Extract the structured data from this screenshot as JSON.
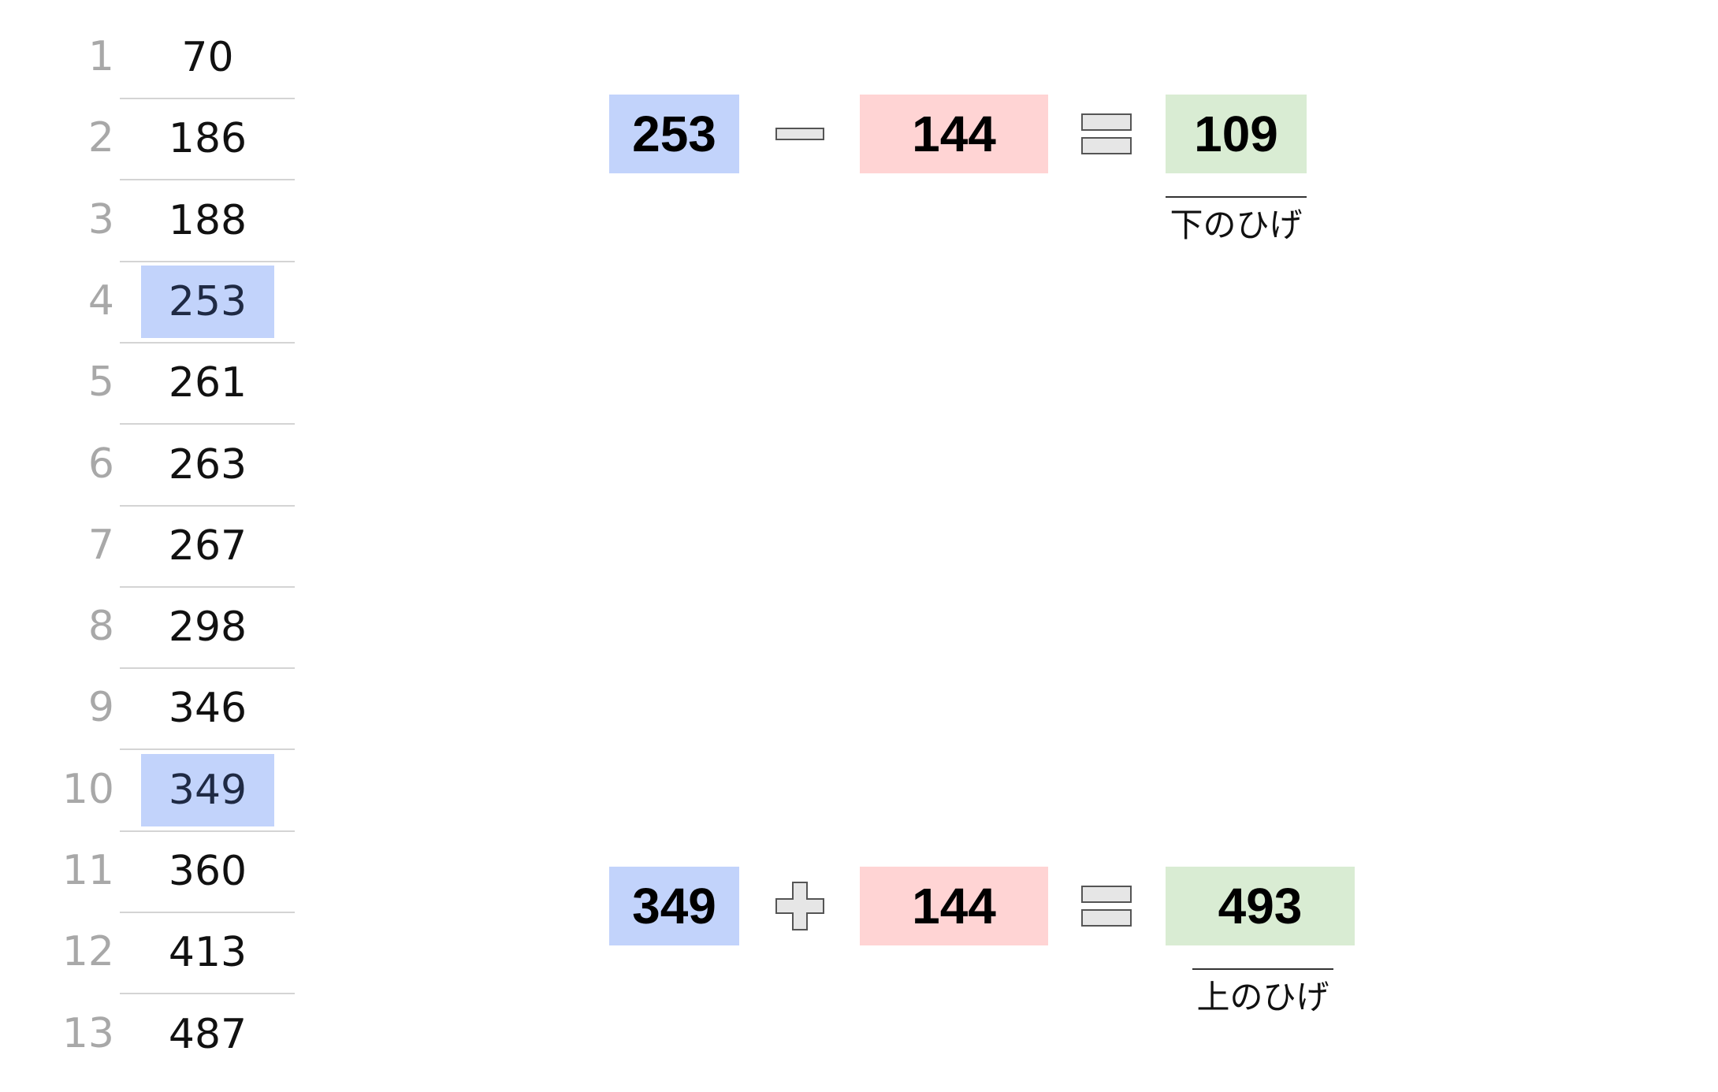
{
  "data_list": {
    "rows": [
      {
        "index": "1",
        "value": "70",
        "highlight": false
      },
      {
        "index": "2",
        "value": "186",
        "highlight": false
      },
      {
        "index": "3",
        "value": "188",
        "highlight": false
      },
      {
        "index": "4",
        "value": "253",
        "highlight": true
      },
      {
        "index": "5",
        "value": "261",
        "highlight": false
      },
      {
        "index": "6",
        "value": "263",
        "highlight": false
      },
      {
        "index": "7",
        "value": "267",
        "highlight": false
      },
      {
        "index": "8",
        "value": "298",
        "highlight": false
      },
      {
        "index": "9",
        "value": "346",
        "highlight": false
      },
      {
        "index": "10",
        "value": "349",
        "highlight": true
      },
      {
        "index": "11",
        "value": "360",
        "highlight": false
      },
      {
        "index": "12",
        "value": "413",
        "highlight": false
      },
      {
        "index": "13",
        "value": "487",
        "highlight": false
      }
    ]
  },
  "equations": {
    "lower": {
      "operand_a": "253",
      "operator_icon": "minus-icon",
      "operand_b": "144",
      "equals_icon": "equals-icon",
      "result": "109",
      "caption": "下のひげ"
    },
    "upper": {
      "operand_a": "349",
      "operator_icon": "plus-icon",
      "operand_b": "144",
      "equals_icon": "equals-icon",
      "result": "493",
      "caption": "上のひげ"
    }
  },
  "colors": {
    "highlight_blue": "#c2d3fb",
    "box_pink": "#ffd4d4",
    "box_green": "#d9ecd3",
    "icon_fill": "#e6e6e6",
    "icon_stroke": "#555555",
    "index_gray": "#a8a8a8"
  }
}
